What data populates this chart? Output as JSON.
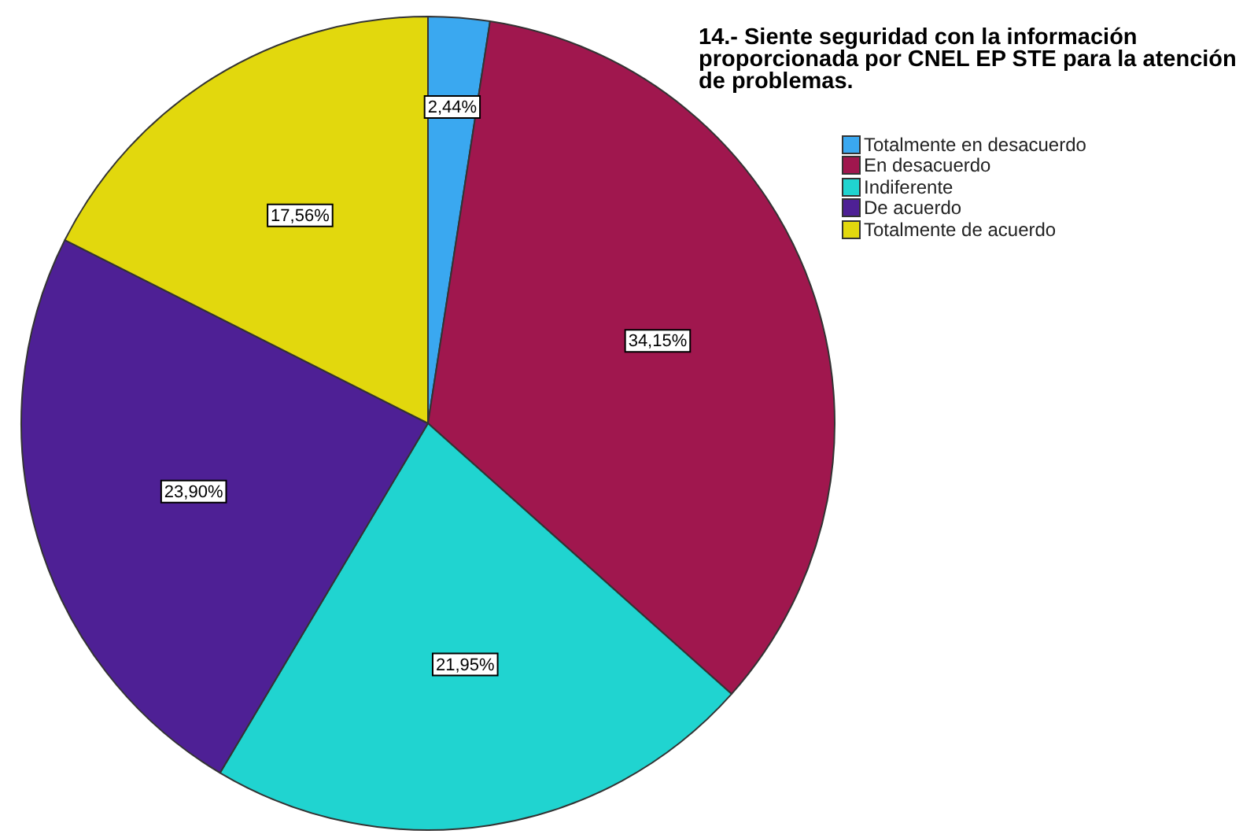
{
  "chart_data": {
    "type": "pie",
    "title": "14.- Siente seguridad con la información proporcionada por CNEL EP STE para la atención de problemas.",
    "categories": [
      "Totalmente en desacuerdo",
      "En desacuerdo",
      "Indiferente",
      "De acuerdo",
      "Totalmente de acuerdo"
    ],
    "values": [
      2.44,
      34.15,
      21.95,
      23.9,
      17.56
    ],
    "colors": [
      "#3aa8f0",
      "#a0174e",
      "#20d4d0",
      "#4e2095",
      "#e2d80d"
    ],
    "value_labels": [
      "2,44%",
      "34,15%",
      "21,95%",
      "23,90%",
      "17,56%"
    ],
    "legend": "top right"
  }
}
